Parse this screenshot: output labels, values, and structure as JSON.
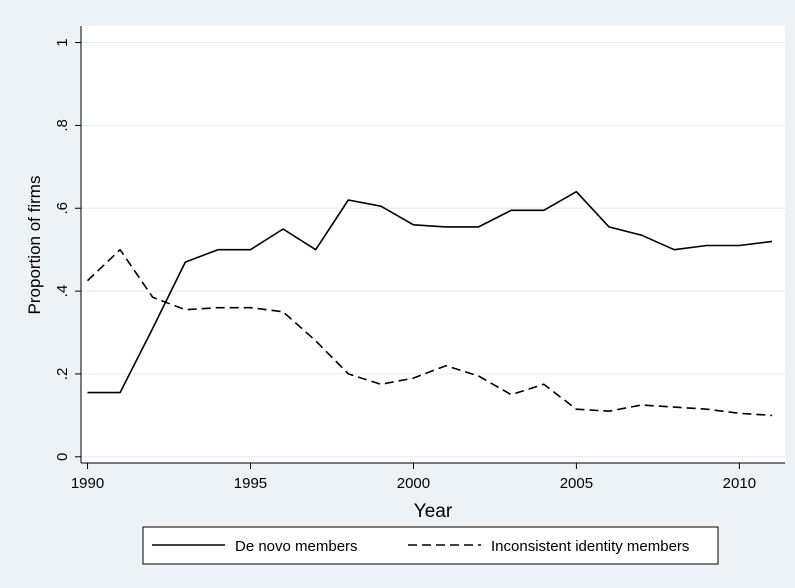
{
  "chart_data": {
    "type": "line",
    "title": "",
    "xlabel": "Year",
    "ylabel": "Proportion of firms",
    "xlim": [
      1989.8,
      2011.4
    ],
    "ylim": [
      -0.015,
      1.04
    ],
    "x_ticks": [
      1990,
      1995,
      2000,
      2005,
      2010
    ],
    "x_tick_labels": [
      "1990",
      "1995",
      "2000",
      "2005",
      "2010"
    ],
    "y_ticks": [
      0,
      0.2,
      0.4,
      0.6,
      0.8,
      1
    ],
    "y_tick_labels": [
      "0",
      ".2",
      ".4",
      ".6",
      ".8",
      "1"
    ],
    "grid": true,
    "legend_position": "bottom",
    "x": [
      1990,
      1991,
      1992,
      1993,
      1994,
      1995,
      1996,
      1997,
      1998,
      1999,
      2000,
      2001,
      2002,
      2003,
      2004,
      2005,
      2006,
      2007,
      2008,
      2009,
      2010,
      2011
    ],
    "series": [
      {
        "name": "De novo members",
        "style": "solid",
        "color": "#000000",
        "values": [
          0.155,
          0.155,
          0.31,
          0.47,
          0.5,
          0.5,
          0.55,
          0.5,
          0.62,
          0.605,
          0.56,
          0.555,
          0.555,
          0.595,
          0.595,
          0.64,
          0.555,
          0.535,
          0.5,
          0.51,
          0.51,
          0.52
        ]
      },
      {
        "name": "Inconsistent identity members",
        "style": "dashed",
        "color": "#000000",
        "values": [
          0.425,
          0.5,
          0.385,
          0.355,
          0.36,
          0.36,
          0.35,
          0.28,
          0.2,
          0.175,
          0.19,
          0.22,
          0.195,
          0.15,
          0.175,
          0.115,
          0.11,
          0.125,
          0.12,
          0.115,
          0.105,
          0.1
        ]
      }
    ]
  },
  "colors": {
    "background": "#ecf2f6",
    "plot_background": "#ffffff",
    "grid": "#e8eef3",
    "line": "#000000"
  }
}
